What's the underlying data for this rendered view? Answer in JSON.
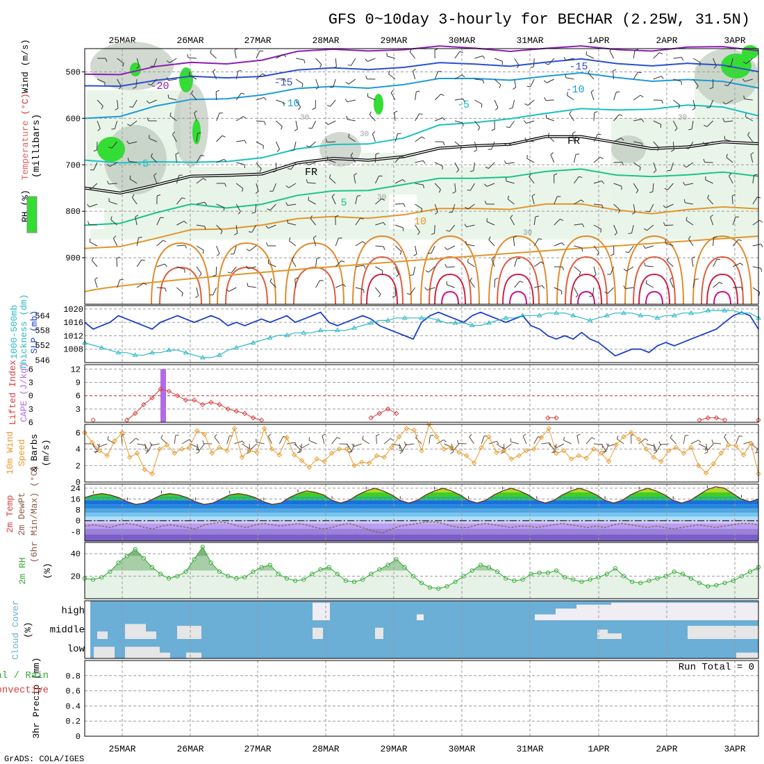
{
  "title": "GFS 0~10day 3-hourly for BECHAR (2.25W, 31.5N)",
  "footer": "GrADS: COLA/IGES",
  "dates": [
    "25MAR",
    "26MAR",
    "27MAR",
    "28MAR",
    "29MAR",
    "30MAR",
    "31MAR",
    "1APR",
    "2APR",
    "3APR"
  ],
  "colors": {
    "rh_green": "#33dd33",
    "rh_light": "#e8f4e8",
    "slp": "#1b3fc8",
    "thick": "#2bb8c4",
    "li": "#d94040",
    "cape": "#b36ae8",
    "wind": "#e89a2a",
    "temp_green": "#33bb22",
    "rh2": "#33aa33",
    "cloud": "#6baed6",
    "cloud_white": "#f0eef4"
  },
  "chart_data": [
    {
      "type": "heatmap",
      "name": "upper-air",
      "ylabel_parts": [
        "Wind (m/s)",
        "Temperature (°C)",
        "RH (%)",
        "(millibars)"
      ],
      "yticks": [
        500,
        600,
        700,
        800,
        900
      ],
      "ylim": [
        1000,
        450
      ],
      "temperature_contours": [
        {
          "label": "-20",
          "values": [
            505,
            500,
            490,
            485,
            480,
            470,
            460,
            455,
            450,
            450,
            450,
            450,
            450,
            450,
            450,
            450,
            450,
            450,
            450,
            450
          ]
        },
        {
          "label": "-15",
          "values": [
            530,
            525,
            520,
            515,
            510,
            505,
            500,
            495,
            490,
            488,
            486,
            484,
            482,
            480,
            478,
            480,
            482,
            485,
            490,
            495
          ]
        },
        {
          "label": "-10",
          "values": [
            600,
            590,
            575,
            565,
            555,
            545,
            540,
            535,
            530,
            525,
            520,
            515,
            512,
            510,
            508,
            510,
            515,
            520,
            525,
            530
          ]
        },
        {
          "label": "-5",
          "values": [
            690,
            690,
            695,
            700,
            690,
            680,
            670,
            660,
            650,
            640,
            620,
            610,
            595,
            590,
            585,
            580,
            575,
            575,
            580,
            590
          ]
        },
        {
          "label": "0 FR",
          "values": [
            750,
            755,
            745,
            730,
            720,
            715,
            700,
            690,
            685,
            680,
            670,
            660,
            650,
            640,
            645,
            650,
            660,
            665,
            655,
            650
          ]
        },
        {
          "label": "5",
          "values": [
            830,
            820,
            805,
            790,
            790,
            780,
            770,
            760,
            750,
            740,
            735,
            730,
            720,
            715,
            715,
            720,
            720,
            725,
            720,
            720
          ]
        },
        {
          "label": "10",
          "values": [
            880,
            870,
            860,
            845,
            835,
            825,
            820,
            815,
            810,
            805,
            800,
            795,
            790,
            785,
            790,
            795,
            800,
            800,
            795,
            790
          ]
        }
      ],
      "contour_labels": [
        "-20",
        "-15",
        "-10",
        "-5",
        "FR",
        "5",
        "10",
        "-15",
        "-10",
        "-5",
        "FR",
        "10",
        "30",
        "30",
        "30",
        "30",
        "30"
      ]
    },
    {
      "type": "line",
      "name": "slp-thickness",
      "ylabel": "SLP (mb)",
      "ylabel2": "1000-500mb Thickness (dm)",
      "yticks_right": [
        1008,
        1012,
        1016,
        1020
      ],
      "yticks_left": [
        546,
        552,
        558,
        564
      ],
      "ylim": [
        1004,
        1021
      ],
      "ylim_thick": [
        545,
        568
      ],
      "series": [
        {
          "name": "SLP",
          "values": [
            1016,
            1014,
            1015,
            1016,
            1018,
            1017,
            1016,
            1015,
            1014,
            1016,
            1017,
            1018,
            1017,
            1016,
            1017,
            1018,
            1017,
            1015,
            1016,
            1015,
            1016,
            1017,
            1016,
            1017,
            1018,
            1016,
            1017,
            1018,
            1019,
            1016,
            1015,
            1016,
            1017,
            1018,
            1017,
            1015,
            1014,
            1013,
            1012,
            1011,
            1016,
            1018,
            1019,
            1018,
            1017,
            1016,
            1018,
            1019,
            1018,
            1017,
            1016,
            1017,
            1018,
            1015,
            1014,
            1012,
            1011,
            1012,
            1011,
            1013,
            1011,
            1010,
            1008,
            1006,
            1007,
            1008,
            1008,
            1007,
            1009,
            1010,
            1009,
            1010,
            1011,
            1012,
            1013,
            1014,
            1016,
            1018,
            1019,
            1018,
            1014
          ]
        },
        {
          "name": "Thickness",
          "values": [
            553,
            552,
            551,
            550,
            549,
            549,
            548,
            548,
            549,
            549,
            550,
            550,
            549,
            548,
            547,
            547,
            548,
            550,
            551,
            552,
            553,
            554,
            555,
            556,
            556,
            557,
            557,
            557,
            558,
            558,
            558,
            558,
            559,
            560,
            561,
            562,
            562,
            563,
            563,
            563,
            563,
            563,
            562,
            561,
            561,
            561,
            560,
            560,
            561,
            562,
            563,
            563,
            564,
            564,
            564,
            565,
            565,
            565,
            564,
            563,
            562,
            563,
            564,
            565,
            565,
            565,
            564,
            564,
            563,
            564,
            564,
            565,
            565,
            565,
            566,
            566,
            566,
            566,
            565,
            565,
            563
          ]
        }
      ]
    },
    {
      "type": "bar",
      "name": "li-cape",
      "ylabel": "Lifted Index",
      "ylabel2": "CAPE (J/kg)",
      "yticks_left": [
        -6,
        -3,
        0,
        3,
        6
      ],
      "yticks_right": [
        3,
        6,
        9,
        12
      ],
      "li_values": [
        6,
        5.5,
        6,
        6,
        6,
        5.5,
        4,
        2,
        0.5,
        -1.5,
        -1,
        0,
        1,
        1,
        2,
        1.5,
        2,
        3,
        3.5,
        4,
        5,
        5.5,
        6,
        6,
        6,
        6,
        6,
        6,
        6,
        6,
        6,
        6,
        6,
        6,
        5,
        4,
        3,
        4,
        6,
        6,
        6,
        6,
        6,
        6,
        6,
        6,
        6,
        6,
        6,
        6,
        6,
        6,
        6,
        6,
        6,
        5,
        5,
        6,
        6,
        6,
        6,
        6,
        6,
        6,
        6,
        6,
        6,
        6,
        6,
        6,
        6,
        6,
        6,
        5.5,
        5,
        5,
        5.5,
        6,
        6,
        6,
        5.5
      ],
      "cape": [
        {
          "time": 8.5,
          "value": 12
        }
      ]
    },
    {
      "type": "line",
      "name": "wind10m",
      "ylabel": "10m Wind Speed & Barbs (m/s)",
      "yticks": [
        0,
        2,
        4,
        6
      ],
      "ylim": [
        0,
        7
      ],
      "values": [
        6,
        4.8,
        3.8,
        3.2,
        5,
        6,
        3,
        3.5,
        1.5,
        1,
        4,
        4.5,
        3.5,
        4,
        4.2,
        6.2,
        5.8,
        3.5,
        4.2,
        3.8,
        6.5,
        3,
        3.8,
        3.6,
        6.5,
        4,
        3.3,
        5.4,
        3.3,
        2.6,
        1.8,
        2.8,
        2.5,
        3.5,
        4,
        4,
        2,
        2.4,
        2.3,
        3.2,
        3,
        4.2,
        5.5,
        6.5,
        6.3,
        3.8,
        7,
        5.5,
        4,
        4.2,
        3.6,
        3.2,
        2.3,
        4.2,
        5.5,
        3.6,
        3.8,
        2.8,
        3.2,
        3.8,
        4,
        5.4,
        6.5,
        3.5,
        3.8,
        2.8,
        3.2,
        2.9,
        4,
        3.5,
        2.5,
        4.5,
        5.5,
        6,
        5.2,
        4,
        3,
        2.5,
        3.8,
        4.2,
        3.5,
        4.2,
        2,
        1.1,
        2.2,
        3.5,
        4.5,
        4.4,
        3.3,
        4.7,
        1
      ]
    },
    {
      "type": "area",
      "name": "temp2m",
      "ylabel": "2m Temp",
      "ylabel2": "2m DewPt",
      "ylabel3": "(6hr Min/Max) (°C)",
      "yticks": [
        -8,
        0,
        8,
        16,
        24
      ],
      "ylim": [
        -15,
        27
      ],
      "temp": [
        17,
        19,
        20,
        19,
        17,
        14,
        12,
        13,
        16,
        19,
        20,
        19,
        17,
        14,
        12,
        13,
        16,
        19,
        20,
        19,
        17,
        14,
        12,
        13,
        17,
        20,
        22,
        21,
        19,
        15,
        13,
        15,
        19,
        22,
        24,
        22,
        19,
        15,
        13,
        15,
        19,
        22,
        24,
        22,
        19,
        15,
        13,
        15,
        19,
        22,
        24,
        22,
        19,
        15,
        13,
        15,
        19,
        22,
        24,
        22,
        19,
        15,
        13,
        15,
        19,
        22,
        24,
        22,
        19,
        15,
        13,
        15,
        19,
        23,
        25,
        24,
        20,
        16,
        14,
        16
      ],
      "dewpt": [
        -4,
        -3,
        -4,
        -5,
        -3,
        -2,
        -3,
        -5,
        -6,
        -4,
        -3,
        -4,
        -5,
        -6,
        -3,
        -2,
        -1,
        -2,
        -4,
        -5,
        -3,
        -2,
        -3,
        -4,
        -3,
        -2,
        -3,
        -5,
        -6,
        -5,
        -3,
        -2,
        -4,
        -6,
        -8,
        -9,
        -6,
        -4,
        -3,
        -2,
        -1,
        -1,
        -2,
        -4,
        -5,
        -5,
        -3,
        -2,
        -3,
        -4,
        -5,
        -4,
        -4,
        -5,
        -4,
        -3,
        -2,
        -3,
        -4,
        -5,
        -4,
        -5,
        -3,
        -2,
        -3,
        -4,
        -5,
        -4,
        -5,
        -6,
        -5,
        -4,
        -3,
        -4,
        -5,
        -4,
        -3,
        -2,
        -2,
        -3
      ]
    },
    {
      "type": "area",
      "name": "rh2m",
      "ylabel": "2m RH (%)",
      "yticks": [
        20,
        40
      ],
      "ylim": [
        0,
        50
      ],
      "values": [
        18,
        17,
        19,
        24,
        32,
        38,
        44,
        36,
        28,
        22,
        18,
        20,
        24,
        35,
        46,
        32,
        24,
        20,
        18,
        19,
        24,
        28,
        30,
        22,
        18,
        16,
        17,
        22,
        26,
        28,
        22,
        16,
        15,
        17,
        22,
        26,
        30,
        35,
        28,
        20,
        14,
        10,
        9,
        11,
        15,
        20,
        25,
        30,
        28,
        24,
        18,
        16,
        17,
        22,
        23,
        23,
        25,
        19,
        17,
        15,
        17,
        19,
        22,
        27,
        20,
        15,
        14,
        16,
        18,
        20,
        24,
        22,
        18,
        14,
        11,
        12,
        14,
        16,
        20,
        24,
        28
      ]
    },
    {
      "type": "heatmap",
      "name": "cloud",
      "ylabel": "Cloud Cover (%)",
      "levels": [
        "high",
        "middle",
        "low"
      ]
    },
    {
      "type": "bar",
      "name": "precip",
      "ylabel": "3hr Precip (mm)",
      "ylabel_left": [
        "Total / Rain",
        "Convective"
      ],
      "yticks": [
        0,
        0.2,
        0.4,
        0.6,
        0.8
      ],
      "ylim": [
        0,
        1
      ],
      "run_total": "Run Total = 0"
    }
  ]
}
